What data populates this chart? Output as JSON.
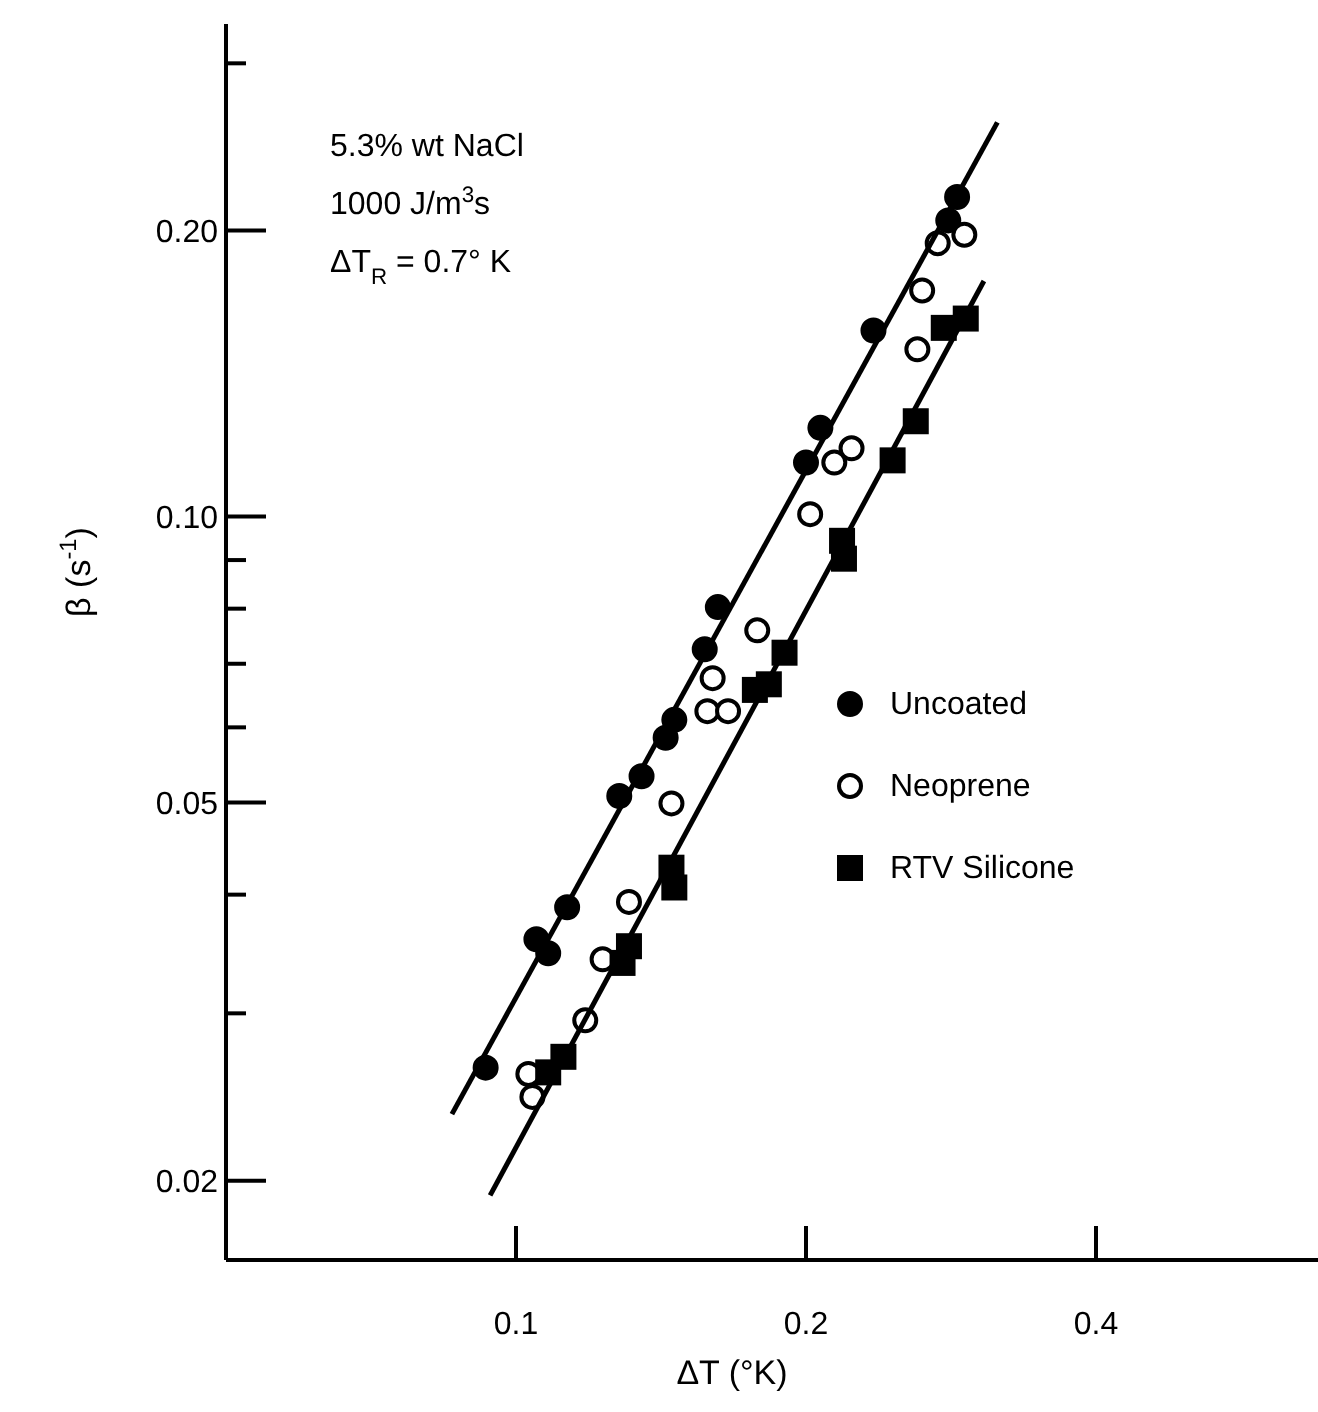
{
  "chart_data": {
    "type": "scatter",
    "xlabel": "ΔT (°K)",
    "ylabel": "β (s$^{-1}$)",
    "log": "xy",
    "xlim": [
      0.05,
      0.68
    ],
    "ylim": [
      0.0165,
      0.33
    ],
    "xticks": [
      0.1,
      0.2,
      0.4
    ],
    "yticks": [
      {
        "value": 0.02,
        "label": "0.02"
      },
      {
        "value": 0.03,
        "label": null
      },
      {
        "value": 0.04,
        "label": null
      },
      {
        "value": 0.05,
        "label": "0.05"
      },
      {
        "value": 0.06,
        "label": null
      },
      {
        "value": 0.07,
        "label": null
      },
      {
        "value": 0.08,
        "label": null
      },
      {
        "value": 0.09,
        "label": null
      },
      {
        "value": 0.1,
        "label": "0.10"
      },
      {
        "value": 0.2,
        "label": "0.20"
      },
      {
        "value": 0.3,
        "label": null
      }
    ],
    "grid": false,
    "legend": "right",
    "annotations": [
      "5.3% wt NaCl",
      "1000 J/m$^{3}$s",
      "ΔT$_{R}$ = 0.7° K"
    ],
    "series": [
      {
        "name": "Uncoated",
        "color": "#000000",
        "marker": "circle",
        "x": [
          0.093,
          0.105,
          0.108,
          0.113,
          0.128,
          0.135,
          0.143,
          0.146,
          0.157,
          0.162,
          0.2,
          0.207,
          0.235,
          0.281,
          0.287
        ],
        "values": [
          0.0263,
          0.0359,
          0.0347,
          0.0388,
          0.0508,
          0.0533,
          0.0585,
          0.0611,
          0.0725,
          0.0803,
          0.114,
          0.124,
          0.157,
          0.205,
          0.217
        ]
      },
      {
        "name": "Neoprene",
        "color": "#000000",
        "marker": "circle-open",
        "x": [
          0.103,
          0.104,
          0.118,
          0.123,
          0.131,
          0.145,
          0.158,
          0.166,
          0.16,
          0.178,
          0.202,
          0.214,
          0.223,
          0.261,
          0.264,
          0.274,
          0.292
        ],
        "values": [
          0.0259,
          0.0245,
          0.0295,
          0.0342,
          0.0393,
          0.0499,
          0.0624,
          0.0624,
          0.0676,
          0.0759,
          0.1006,
          0.114,
          0.118,
          0.15,
          0.173,
          0.194,
          0.198
        ]
      },
      {
        "name": "RTV Silicone",
        "color": "#000000",
        "marker": "square",
        "x": [
          0.108,
          0.112,
          0.129,
          0.131,
          0.143,
          0.145,
          0.146,
          0.177,
          0.183,
          0.19,
          0.219,
          0.218,
          0.246,
          0.26,
          0.278,
          0.293
        ],
        "values": [
          0.026,
          0.027,
          0.0339,
          0.0353,
          null,
          0.0427,
          0.0407,
          0.0657,
          0.0666,
          0.0719,
          0.0903,
          0.0943,
          0.1146,
          0.126,
          0.158,
          0.1616
        ]
      },
      {
        "type": "line",
        "color": "#000000",
        "marker": "none",
        "x": [
          0.0858,
          0.316
        ],
        "values": [
          0.0235,
          0.26
        ]
      },
      {
        "type": "line",
        "color": "#000000",
        "marker": "none",
        "x": [
          0.094,
          0.306
        ],
        "values": [
          0.0193,
          0.177
        ]
      }
    ]
  }
}
